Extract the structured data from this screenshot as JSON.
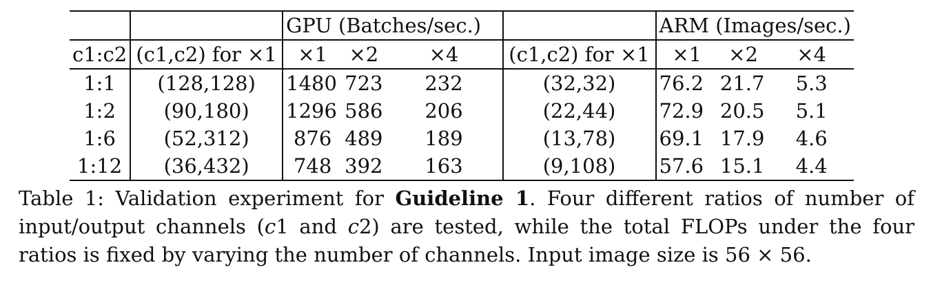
{
  "table": {
    "group_headers": {
      "gpu": "GPU (Batches/sec.)",
      "arm": "ARM (Images/sec.)"
    },
    "columns": {
      "ratio": "c1:c2",
      "gpu_channels": "(c1,c2) for ×1",
      "gpu_x1": "×1",
      "gpu_x2": "×2",
      "gpu_x4": "×4",
      "arm_channels": "(c1,c2) for ×1",
      "arm_x1": "×1",
      "arm_x2": "×2",
      "arm_x4": "×4"
    },
    "rows": [
      {
        "ratio": "1:1",
        "gpu_channels": "(128,128)",
        "gpu_x1": "1480",
        "gpu_x2": "723",
        "gpu_x4": "232",
        "arm_channels": "(32,32)",
        "arm_x1": "76.2",
        "arm_x2": "21.7",
        "arm_x4": "5.3"
      },
      {
        "ratio": "1:2",
        "gpu_channels": "(90,180)",
        "gpu_x1": "1296",
        "gpu_x2": "586",
        "gpu_x4": "206",
        "arm_channels": "(22,44)",
        "arm_x1": "72.9",
        "arm_x2": "20.5",
        "arm_x4": "5.1"
      },
      {
        "ratio": "1:6",
        "gpu_channels": "(52,312)",
        "gpu_x1": "876",
        "gpu_x2": "489",
        "gpu_x4": "189",
        "arm_channels": "(13,78)",
        "arm_x1": "69.1",
        "arm_x2": "17.9",
        "arm_x4": "4.6"
      },
      {
        "ratio": "1:12",
        "gpu_channels": "(36,432)",
        "gpu_x1": "748",
        "gpu_x2": "392",
        "gpu_x4": "163",
        "arm_channels": "(9,108)",
        "arm_x1": "57.6",
        "arm_x2": "15.1",
        "arm_x4": "4.4"
      }
    ]
  },
  "caption": {
    "prefix": "Table 1: Validation experiment for ",
    "bold": "Guideline 1",
    "middle1": ". Four different ratios of number of input/output channels (",
    "c1": "c",
    "one": "1 and ",
    "c2": "c",
    "two": "2) are tested, while the total FLOPs under the four ratios is fixed by varying the number of channels. Input image size is 56 × 56."
  }
}
